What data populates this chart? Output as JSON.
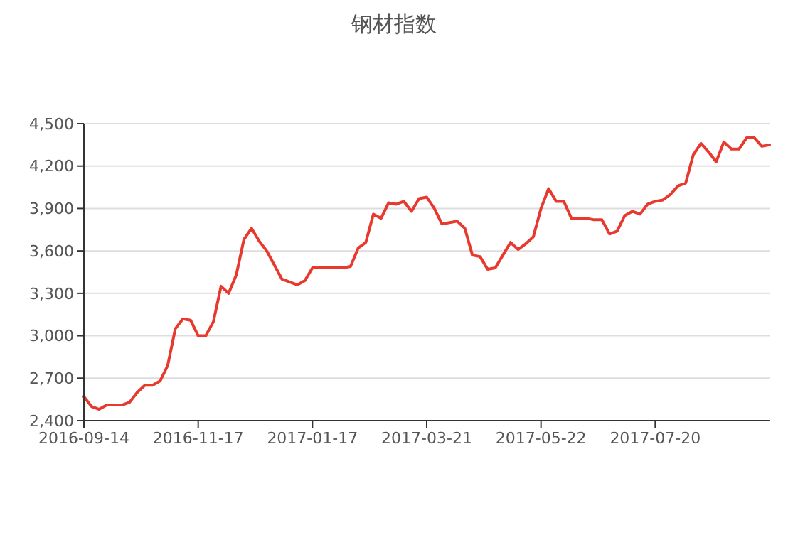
{
  "chart_data": {
    "type": "line",
    "title": "钢材指数",
    "categories": [
      "2016-09-14",
      null,
      null,
      null,
      null,
      null,
      null,
      null,
      null,
      null,
      null,
      null,
      null,
      null,
      null,
      "2016-11-17",
      null,
      null,
      null,
      null,
      null,
      null,
      null,
      null,
      null,
      null,
      null,
      null,
      null,
      null,
      "2017-01-17",
      null,
      null,
      null,
      null,
      null,
      null,
      null,
      null,
      null,
      null,
      null,
      null,
      null,
      null,
      "2017-03-21",
      null,
      null,
      null,
      null,
      null,
      null,
      null,
      null,
      null,
      null,
      null,
      null,
      null,
      null,
      "2017-05-22",
      null,
      null,
      null,
      null,
      null,
      null,
      null,
      null,
      null,
      null,
      null,
      null,
      null,
      null,
      "2017-07-20",
      null,
      null,
      null,
      null,
      null,
      null,
      null,
      null,
      null,
      null,
      null,
      null,
      null,
      null,
      null
    ],
    "series": [
      {
        "color": "#e8392f",
        "values": [
          2570,
          2500,
          2480,
          2510,
          2510,
          2510,
          2530,
          2600,
          2650,
          2650,
          2680,
          2790,
          3050,
          3120,
          3110,
          3000,
          3000,
          3100,
          3350,
          3300,
          3430,
          3680,
          3760,
          3670,
          3600,
          3500,
          3400,
          3380,
          3360,
          3390,
          3480,
          3480,
          3480,
          3480,
          3480,
          3490,
          3620,
          3660,
          3860,
          3830,
          3940,
          3930,
          3950,
          3880,
          3970,
          3980,
          3900,
          3790,
          3800,
          3810,
          3760,
          3570,
          3560,
          3470,
          3480,
          3570,
          3660,
          3610,
          3650,
          3700,
          3900,
          4040,
          3950,
          3950,
          3830,
          3830,
          3830,
          3820,
          3820,
          3720,
          3740,
          3850,
          3880,
          3860,
          3930,
          3950,
          3960,
          4000,
          4060,
          4080,
          4280,
          4360,
          4300,
          4230,
          4370,
          4320,
          4320,
          4400,
          4400,
          4340,
          4350
        ]
      }
    ],
    "ylim": [
      2400,
      4500
    ],
    "yticks": [
      {
        "value": 2400,
        "label": "2,400"
      },
      {
        "value": 2700,
        "label": "2,700"
      },
      {
        "value": 3000,
        "label": "3,000"
      },
      {
        "value": 3300,
        "label": "3,300"
      },
      {
        "value": 3600,
        "label": "3,600"
      },
      {
        "value": 3900,
        "label": "3,900"
      },
      {
        "value": 4200,
        "label": "4,200"
      },
      {
        "value": 4500,
        "label": "4,500"
      }
    ],
    "grid": "y",
    "marker": "none",
    "line_style": "solid"
  }
}
